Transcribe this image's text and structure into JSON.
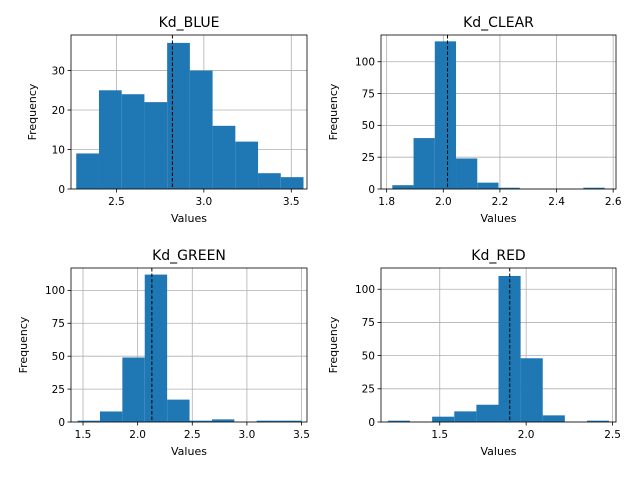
{
  "chart_data": [
    {
      "type": "bar",
      "title": "Kd_BLUE",
      "xlabel": "Values",
      "ylabel": "Frequency",
      "xlim": [
        2.24,
        3.59
      ],
      "ylim": [
        0,
        39
      ],
      "xticks": [
        2.5,
        3.0,
        3.5
      ],
      "xtick_labels": [
        "2.5",
        "3.0",
        "3.5"
      ],
      "yticks": [
        0,
        10,
        20,
        30
      ],
      "ytick_labels": [
        "0",
        "10",
        "20",
        "30"
      ],
      "bin_edges": [
        2.27,
        2.4,
        2.53,
        2.66,
        2.79,
        2.92,
        3.05,
        3.18,
        3.31,
        3.44,
        3.57
      ],
      "values": [
        9,
        25,
        24,
        22,
        37,
        30,
        16,
        12,
        4,
        3
      ],
      "reference_line_x": 2.82,
      "grid": true
    },
    {
      "type": "bar",
      "title": "Kd_CLEAR",
      "xlabel": "Values",
      "ylabel": "Frequency",
      "xlim": [
        1.78,
        2.61
      ],
      "ylim": [
        0,
        121
      ],
      "xticks": [
        1.8,
        2.0,
        2.2,
        2.4,
        2.6
      ],
      "xtick_labels": [
        "1.8",
        "2.0",
        "2.2",
        "2.4",
        "2.6"
      ],
      "yticks": [
        0,
        25,
        50,
        75,
        100
      ],
      "ytick_labels": [
        "0",
        "25",
        "50",
        "75",
        "100"
      ],
      "bin_edges": [
        1.82,
        1.895,
        1.97,
        2.045,
        2.12,
        2.195,
        2.27,
        2.345,
        2.42,
        2.495,
        2.57
      ],
      "values": [
        3,
        40,
        116,
        24,
        5,
        1,
        0,
        0,
        0,
        1
      ],
      "reference_line_x": 2.015,
      "grid": true
    },
    {
      "type": "bar",
      "title": "Kd_GREEN",
      "xlabel": "Values",
      "ylabel": "Frequency",
      "xlim": [
        1.39,
        3.55
      ],
      "ylim": [
        0,
        117
      ],
      "xticks": [
        1.5,
        2.0,
        2.5,
        3.0,
        3.5
      ],
      "xtick_labels": [
        "1.5",
        "2.0",
        "2.5",
        "3.0",
        "3.5"
      ],
      "yticks": [
        0,
        25,
        50,
        75,
        100
      ],
      "ytick_labels": [
        "0",
        "25",
        "50",
        "75",
        "100"
      ],
      "bin_edges": [
        1.45,
        1.655,
        1.86,
        2.065,
        2.27,
        2.475,
        2.68,
        2.885,
        3.09,
        3.295,
        3.5
      ],
      "values": [
        1,
        8,
        49,
        112,
        17,
        1,
        2,
        0,
        1,
        1
      ],
      "reference_line_x": 2.13,
      "grid": true
    },
    {
      "type": "bar",
      "title": "Kd_RED",
      "xlabel": "Values",
      "ylabel": "Frequency",
      "xlim": [
        1.16,
        2.52
      ],
      "ylim": [
        0,
        116
      ],
      "xticks": [
        1.5,
        2.0,
        2.5
      ],
      "xtick_labels": [
        "1.5",
        "2.0",
        "2.5"
      ],
      "yticks": [
        0,
        25,
        50,
        75,
        100
      ],
      "ytick_labels": [
        "0",
        "25",
        "50",
        "75",
        "100"
      ],
      "bin_edges": [
        1.2,
        1.328,
        1.456,
        1.584,
        1.712,
        1.84,
        1.968,
        2.096,
        2.224,
        2.352,
        2.48
      ],
      "values": [
        1,
        0,
        4,
        8,
        13,
        110,
        48,
        5,
        0,
        1
      ],
      "reference_line_x": 1.905,
      "grid": true
    }
  ]
}
